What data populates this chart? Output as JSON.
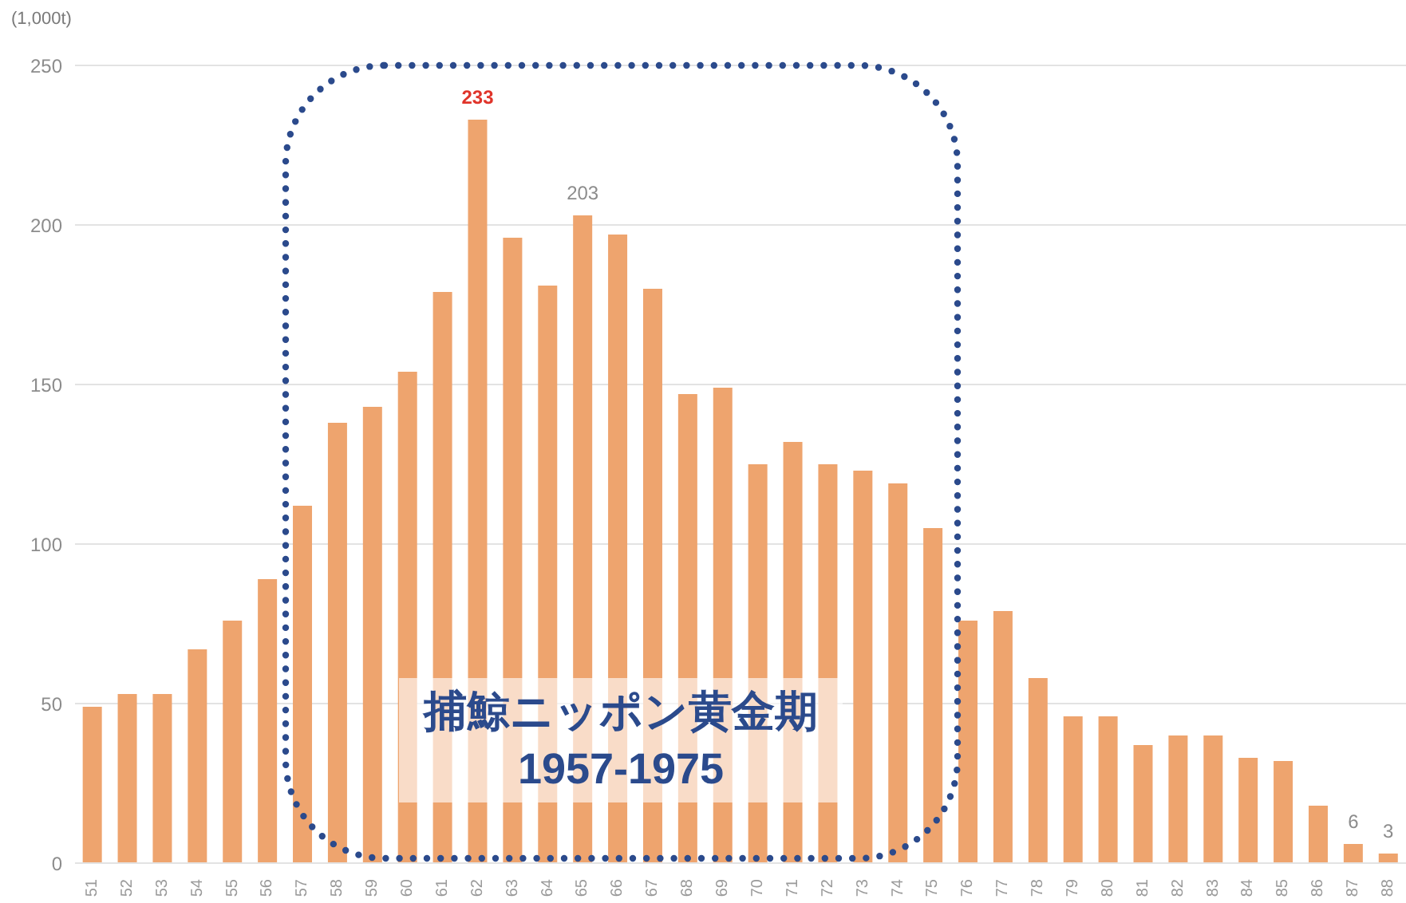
{
  "chart_data": {
    "type": "bar",
    "ylabel": "(1,000t)",
    "categories": [
      "51",
      "52",
      "53",
      "54",
      "55",
      "56",
      "57",
      "58",
      "59",
      "60",
      "61",
      "62",
      "63",
      "64",
      "65",
      "66",
      "67",
      "68",
      "69",
      "70",
      "71",
      "72",
      "73",
      "74",
      "75",
      "76",
      "77",
      "78",
      "79",
      "80",
      "81",
      "82",
      "83",
      "84",
      "85",
      "86",
      "87",
      "88"
    ],
    "values": [
      49,
      53,
      53,
      67,
      76,
      89,
      112,
      138,
      143,
      154,
      179,
      233,
      196,
      181,
      203,
      197,
      180,
      147,
      149,
      125,
      132,
      125,
      123,
      119,
      105,
      76,
      79,
      58,
      46,
      46,
      37,
      40,
      40,
      33,
      32,
      18,
      6,
      3
    ],
    "color": "#eea46e",
    "value_labels": [
      null,
      null,
      null,
      null,
      null,
      null,
      null,
      null,
      null,
      null,
      null,
      "233",
      null,
      null,
      "203",
      null,
      null,
      null,
      null,
      null,
      null,
      null,
      null,
      null,
      null,
      null,
      null,
      null,
      null,
      null,
      null,
      null,
      null,
      null,
      null,
      null,
      "6",
      "3"
    ],
    "ylim": [
      0,
      250
    ],
    "yticks": [
      0,
      50,
      100,
      150,
      200,
      250
    ],
    "grid": "y",
    "annotations": [
      "捕鯨ニッポン黄金期",
      "1957-1975"
    ]
  }
}
